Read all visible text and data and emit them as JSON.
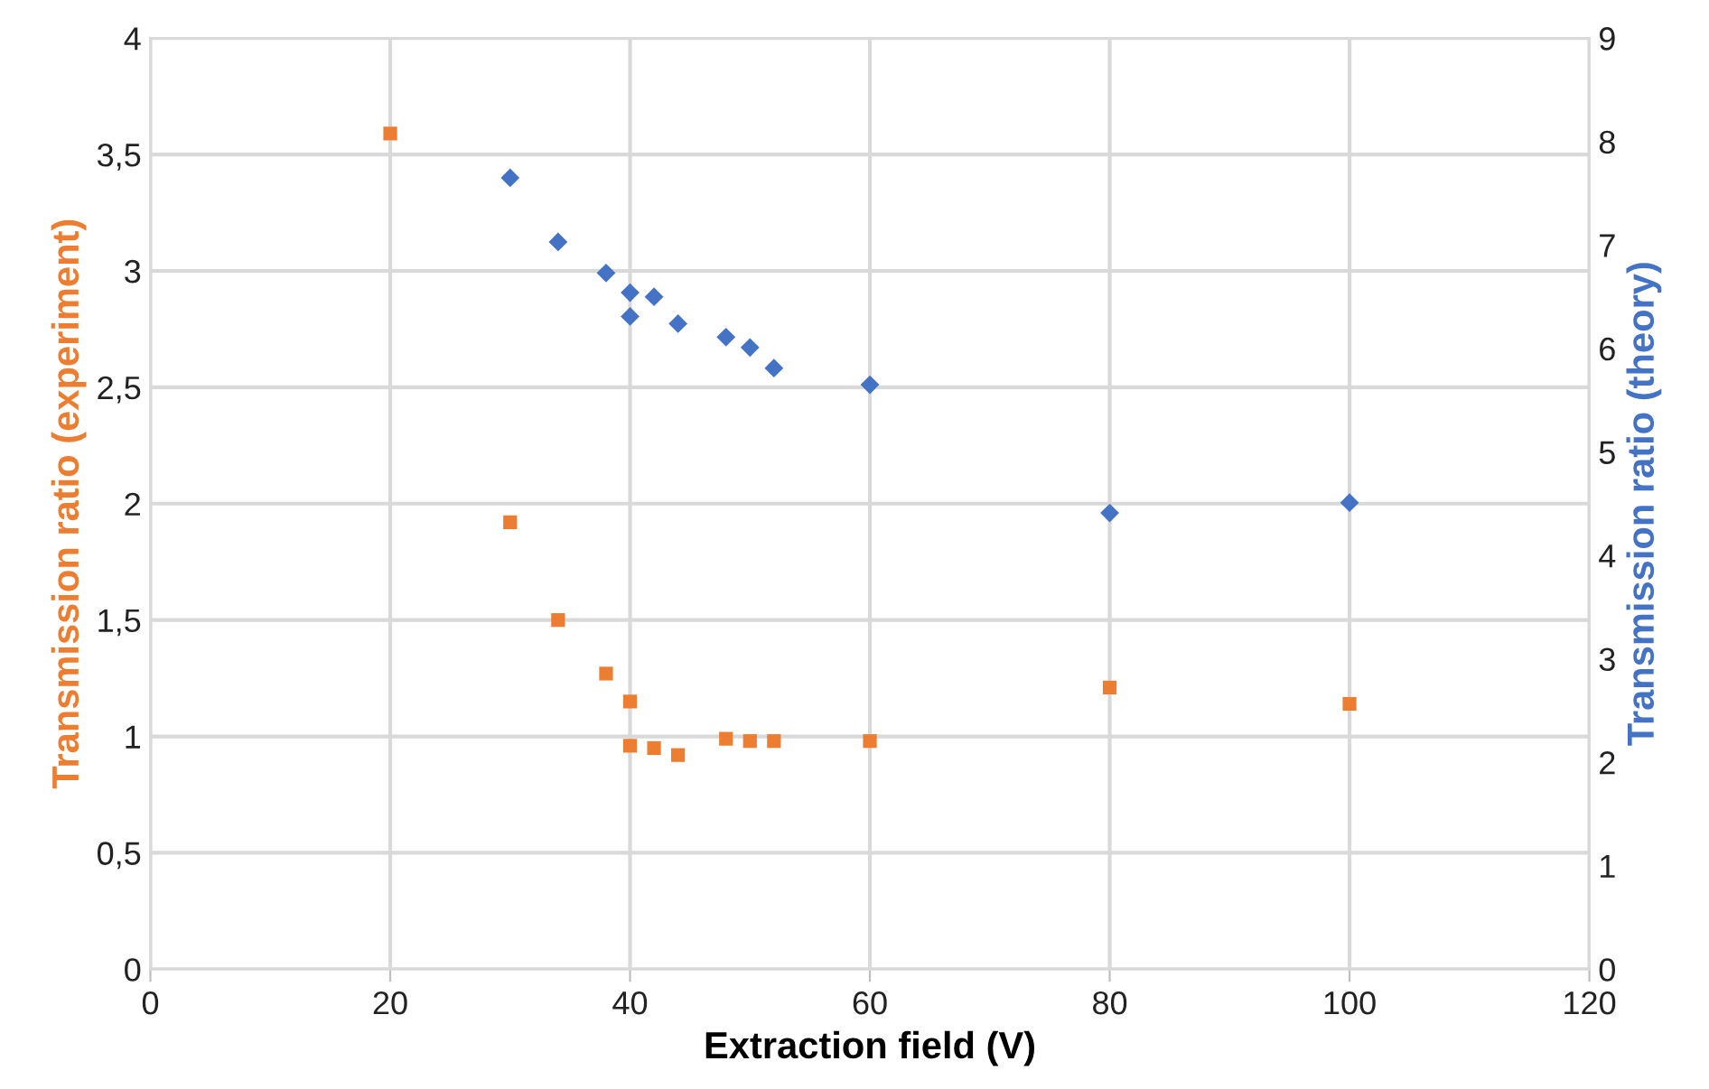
{
  "chart_data": {
    "type": "scatter",
    "xlabel": "Extraction field (V)",
    "ylabel": "Transmission ratio (experiment)",
    "y2label": "Transmission ratio (theory)",
    "xlim": [
      0,
      120
    ],
    "xticks": [
      0,
      20,
      40,
      60,
      80,
      100,
      120
    ],
    "ylim": [
      0,
      4
    ],
    "yticks": [
      0,
      {
        "value": 0.5,
        "label": "0,5"
      },
      1,
      {
        "value": 1.5,
        "label": "1,5"
      },
      2,
      {
        "value": 2.5,
        "label": "2,5"
      },
      3,
      {
        "value": 3.5,
        "label": "3,5"
      },
      4
    ],
    "y2lim": [
      0,
      9
    ],
    "y2ticks": [
      0,
      1,
      2,
      3,
      4,
      5,
      6,
      7,
      8,
      9
    ],
    "grid": true,
    "series": [
      {
        "color": "#ed7d31",
        "marker": "square",
        "x": [
          20,
          30,
          34,
          38,
          40,
          40,
          42,
          44,
          48,
          50,
          52,
          60,
          80,
          100
        ],
        "values": [
          3.59,
          1.92,
          1.5,
          1.27,
          1.15,
          0.96,
          0.95,
          0.92,
          0.99,
          0.98,
          0.98,
          0.98,
          1.21,
          1.14
        ]
      },
      {
        "color": "#4472c4",
        "marker": "diamond",
        "axis": "y2",
        "x": [
          30,
          34,
          38,
          40,
          42,
          40,
          44,
          48,
          50,
          52,
          60,
          80,
          100
        ],
        "values": [
          7.65,
          7.03,
          6.73,
          6.54,
          6.5,
          6.31,
          6.24,
          6.11,
          6.01,
          5.81,
          5.65,
          4.41,
          4.51
        ]
      }
    ]
  }
}
